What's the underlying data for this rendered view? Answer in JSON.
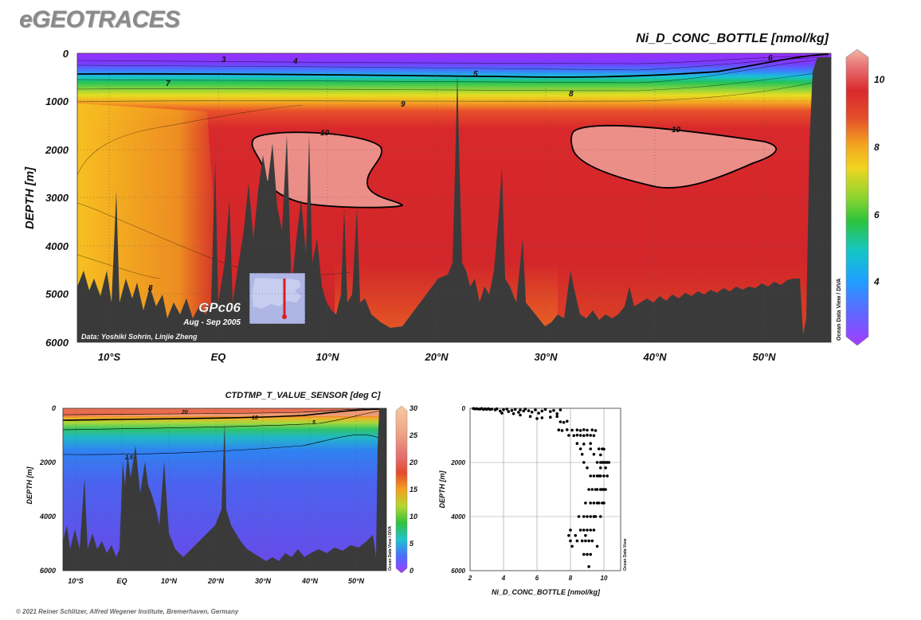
{
  "brand": "eGEOTRACES",
  "copyright": "© 2021 Reiner Schlitzer, Alfred Wegener Institute, Bremerhaven, Germany",
  "chart_data": [
    {
      "type": "heatmap",
      "title": "Ni_D_CONC_BOTTLE [nmol/kg]",
      "ylabel": "DEPTH [m]",
      "xlabel": "",
      "ylim": [
        6000,
        0
      ],
      "y_ticks": [
        "0",
        "1000",
        "2000",
        "3000",
        "4000",
        "5000",
        "6000"
      ],
      "x_ticks": [
        "10°S",
        "EQ",
        "10°N",
        "20°N",
        "30°N",
        "40°N",
        "50°N"
      ],
      "colorbar": {
        "min": 2.5,
        "max": 11,
        "ticks": [
          "4",
          "6",
          "8",
          "10"
        ]
      },
      "contour_labels": [
        "3",
        "4",
        "5",
        "6",
        "7",
        "8",
        "9",
        "10",
        "10",
        "8"
      ],
      "cruise_label": "GPc06",
      "date_label": "Aug - Sep 2005",
      "credit": "Data: Yoshiki Sohrin, Linjie Zheng",
      "odv_label": "Ocean Data View / DIVA",
      "grid": true
    },
    {
      "type": "heatmap",
      "title": "CTDTMP_T_VALUE_SENSOR [deg C]",
      "ylabel": "DEPTH [m]",
      "xlabel": "",
      "ylim": [
        6000,
        0
      ],
      "y_ticks": [
        "0",
        "2000",
        "4000",
        "6000"
      ],
      "x_ticks": [
        "10°S",
        "EQ",
        "10°N",
        "20°N",
        "30°N",
        "40°N",
        "50°N"
      ],
      "colorbar": {
        "min": 0,
        "max": 30,
        "ticks": [
          "0",
          "5",
          "10",
          "15",
          "20",
          "25",
          "30"
        ]
      },
      "contour_labels": [
        "20",
        "10",
        "5",
        "2.5"
      ],
      "odv_label": "Ocean Data View / DIVA",
      "grid": true
    },
    {
      "type": "scatter",
      "xlabel": "Ni_D_CONC_BOTTLE [nmol/kg]",
      "ylabel": "DEPTH [m]",
      "xlim": [
        2,
        11
      ],
      "ylim": [
        6000,
        0
      ],
      "x_ticks": [
        "2",
        "4",
        "6",
        "8",
        "10"
      ],
      "y_ticks": [
        "0",
        "2000",
        "4000",
        "6000"
      ],
      "odv_label": "Ocean Data View",
      "grid": true,
      "points": [
        [
          2.2,
          10
        ],
        [
          2.3,
          20
        ],
        [
          2.4,
          15
        ],
        [
          2.5,
          30
        ],
        [
          2.6,
          25
        ],
        [
          2.7,
          10
        ],
        [
          2.8,
          40
        ],
        [
          2.9,
          20
        ],
        [
          3.0,
          35
        ],
        [
          3.1,
          15
        ],
        [
          3.2,
          45
        ],
        [
          3.3,
          30
        ],
        [
          3.5,
          60
        ],
        [
          3.6,
          20
        ],
        [
          3.8,
          100
        ],
        [
          4.0,
          50
        ],
        [
          4.2,
          30
        ],
        [
          4.3,
          120
        ],
        [
          4.5,
          80
        ],
        [
          4.7,
          40
        ],
        [
          4.9,
          150
        ],
        [
          5.0,
          60
        ],
        [
          5.2,
          100
        ],
        [
          5.3,
          30
        ],
        [
          5.5,
          90
        ],
        [
          5.7,
          140
        ],
        [
          5.9,
          60
        ],
        [
          6.1,
          180
        ],
        [
          6.3,
          100
        ],
        [
          6.5,
          40
        ],
        [
          6.8,
          120
        ],
        [
          7.0,
          80
        ],
        [
          7.2,
          200
        ],
        [
          7.4,
          60
        ],
        [
          5.6,
          300
        ],
        [
          6.0,
          380
        ],
        [
          6.3,
          350
        ],
        [
          6.8,
          330
        ],
        [
          7.2,
          300
        ],
        [
          5.0,
          250
        ],
        [
          4.6,
          200
        ],
        [
          3.9,
          180
        ],
        [
          7.4,
          500
        ],
        [
          7.6,
          520
        ],
        [
          7.8,
          480
        ],
        [
          7.3,
          800
        ],
        [
          7.5,
          820
        ],
        [
          7.8,
          790
        ],
        [
          8.1,
          810
        ],
        [
          8.4,
          800
        ],
        [
          8.6,
          820
        ],
        [
          8.8,
          790
        ],
        [
          9.0,
          810
        ],
        [
          9.3,
          800
        ],
        [
          9.5,
          820
        ],
        [
          7.9,
          1000
        ],
        [
          8.2,
          1010
        ],
        [
          8.4,
          990
        ],
        [
          8.6,
          1000
        ],
        [
          8.8,
          1010
        ],
        [
          9.0,
          990
        ],
        [
          9.2,
          1000
        ],
        [
          9.4,
          1010
        ],
        [
          8.4,
          1300
        ],
        [
          8.8,
          1320
        ],
        [
          9.2,
          1300
        ],
        [
          8.6,
          1500
        ],
        [
          9.2,
          1500
        ],
        [
          9.7,
          1500
        ],
        [
          9.9,
          1500
        ],
        [
          10.0,
          1510
        ],
        [
          8.7,
          1700
        ],
        [
          9.4,
          1700
        ],
        [
          9.8,
          1720
        ],
        [
          8.8,
          2000
        ],
        [
          9.6,
          2000
        ],
        [
          9.8,
          2000
        ],
        [
          9.9,
          2000
        ],
        [
          10.0,
          2000
        ],
        [
          10.1,
          2000
        ],
        [
          10.2,
          2000
        ],
        [
          10.3,
          2000
        ],
        [
          9.0,
          2200
        ],
        [
          9.8,
          2200
        ],
        [
          10.1,
          2200
        ],
        [
          9.2,
          2500
        ],
        [
          9.4,
          2500
        ],
        [
          9.6,
          2500
        ],
        [
          9.7,
          2500
        ],
        [
          9.8,
          2500
        ],
        [
          10.0,
          2500
        ],
        [
          10.2,
          2500
        ],
        [
          9.1,
          3000
        ],
        [
          9.3,
          3000
        ],
        [
          9.5,
          3000
        ],
        [
          9.6,
          3000
        ],
        [
          9.8,
          3000
        ],
        [
          9.9,
          3000
        ],
        [
          10.0,
          3000
        ],
        [
          10.1,
          3000
        ],
        [
          8.9,
          3500
        ],
        [
          9.2,
          3500
        ],
        [
          9.4,
          3500
        ],
        [
          9.6,
          3500
        ],
        [
          9.7,
          3500
        ],
        [
          9.9,
          3500
        ],
        [
          10.0,
          3500
        ],
        [
          8.5,
          4000
        ],
        [
          8.8,
          4000
        ],
        [
          9.0,
          4000
        ],
        [
          9.2,
          4000
        ],
        [
          9.4,
          4000
        ],
        [
          9.5,
          4000
        ],
        [
          9.8,
          4000
        ],
        [
          8.0,
          4500
        ],
        [
          8.6,
          4500
        ],
        [
          8.8,
          4500
        ],
        [
          9.0,
          4500
        ],
        [
          9.2,
          4500
        ],
        [
          9.4,
          4500
        ],
        [
          7.9,
          4700
        ],
        [
          8.3,
          4700
        ],
        [
          8.9,
          4700
        ],
        [
          8.0,
          4900
        ],
        [
          8.4,
          4900
        ],
        [
          8.7,
          4900
        ],
        [
          8.9,
          4900
        ],
        [
          9.1,
          4900
        ],
        [
          9.3,
          4900
        ],
        [
          8.1,
          5100
        ],
        [
          9.6,
          5100
        ],
        [
          8.8,
          5400
        ],
        [
          9.0,
          5400
        ],
        [
          9.2,
          5400
        ],
        [
          9.1,
          5850
        ]
      ]
    }
  ]
}
